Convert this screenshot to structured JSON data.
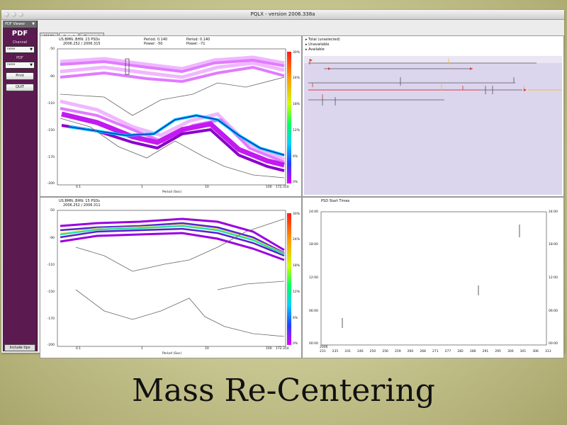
{
  "window": {
    "title": "PQLX - version 2006.338a"
  },
  "sidebar": {
    "top_label": "PDF Viewer",
    "logo": "PDF",
    "channel_label": "Channel",
    "channel_value": "none",
    "pdf_label": "PDF",
    "pdf_value": "none",
    "print_button": "Print",
    "quit_button": "QUIT",
    "help_button": "Include tips"
  },
  "tabs": [
    "MAIN",
    "Detail",
    "Recount"
  ],
  "top_left": {
    "station": "US.BMN..BHN: 23 PSDs",
    "dates": "2006.252 / 2006.315",
    "period_label": "Period: 0.140",
    "power_label": "Power: -50",
    "period2_label": "Period: 0.140",
    "power2_label": "Power: -71",
    "y_ticks": [
      "-50",
      "-90",
      "-110",
      "-150",
      "-170",
      "-200"
    ],
    "x_ticks": [
      "0.1",
      "1",
      "10",
      "100"
    ],
    "x_axis": "Period (Sec)",
    "scale_ticks": [
      "30%",
      "24%",
      "18%",
      "12%",
      "6%",
      "0%"
    ],
    "corner": "172.310"
  },
  "bottom_left": {
    "station": "US.BMN..BHN: 15 PSDs",
    "dates": "2006.252 / 2006.311",
    "y_ticks": [
      "-50",
      "-90",
      "-110",
      "-150",
      "-170",
      "-200"
    ],
    "x_ticks": [
      "0.1",
      "1",
      "10",
      "100"
    ],
    "x_axis": "Period (Sec)",
    "scale_ticks": [
      "30%",
      "24%",
      "18%",
      "12%",
      "6%",
      "0%"
    ],
    "corner": "172.310"
  },
  "top_right": {
    "legend": [
      "Total (unselected)",
      "Unavailable",
      "Available"
    ]
  },
  "bottom_right": {
    "title": "PSD Start Times",
    "y_ticks": [
      "24:00",
      "18:00",
      "12:00",
      "06:00",
      "00:00"
    ],
    "x_ticks": [
      "231",
      "235",
      "241",
      "246",
      "250",
      "256",
      "259",
      "260",
      "268",
      "271",
      "277",
      "282",
      "286",
      "291",
      "295",
      "300",
      "301",
      "306",
      "313"
    ],
    "year": "2006"
  },
  "caption": "Mass Re-Centering",
  "colors": {
    "sidebar": "#5b1a50",
    "psd_purple": "#b400e6",
    "psd_high": "#00d0ff",
    "availability_bg": "#dcd5ee"
  }
}
